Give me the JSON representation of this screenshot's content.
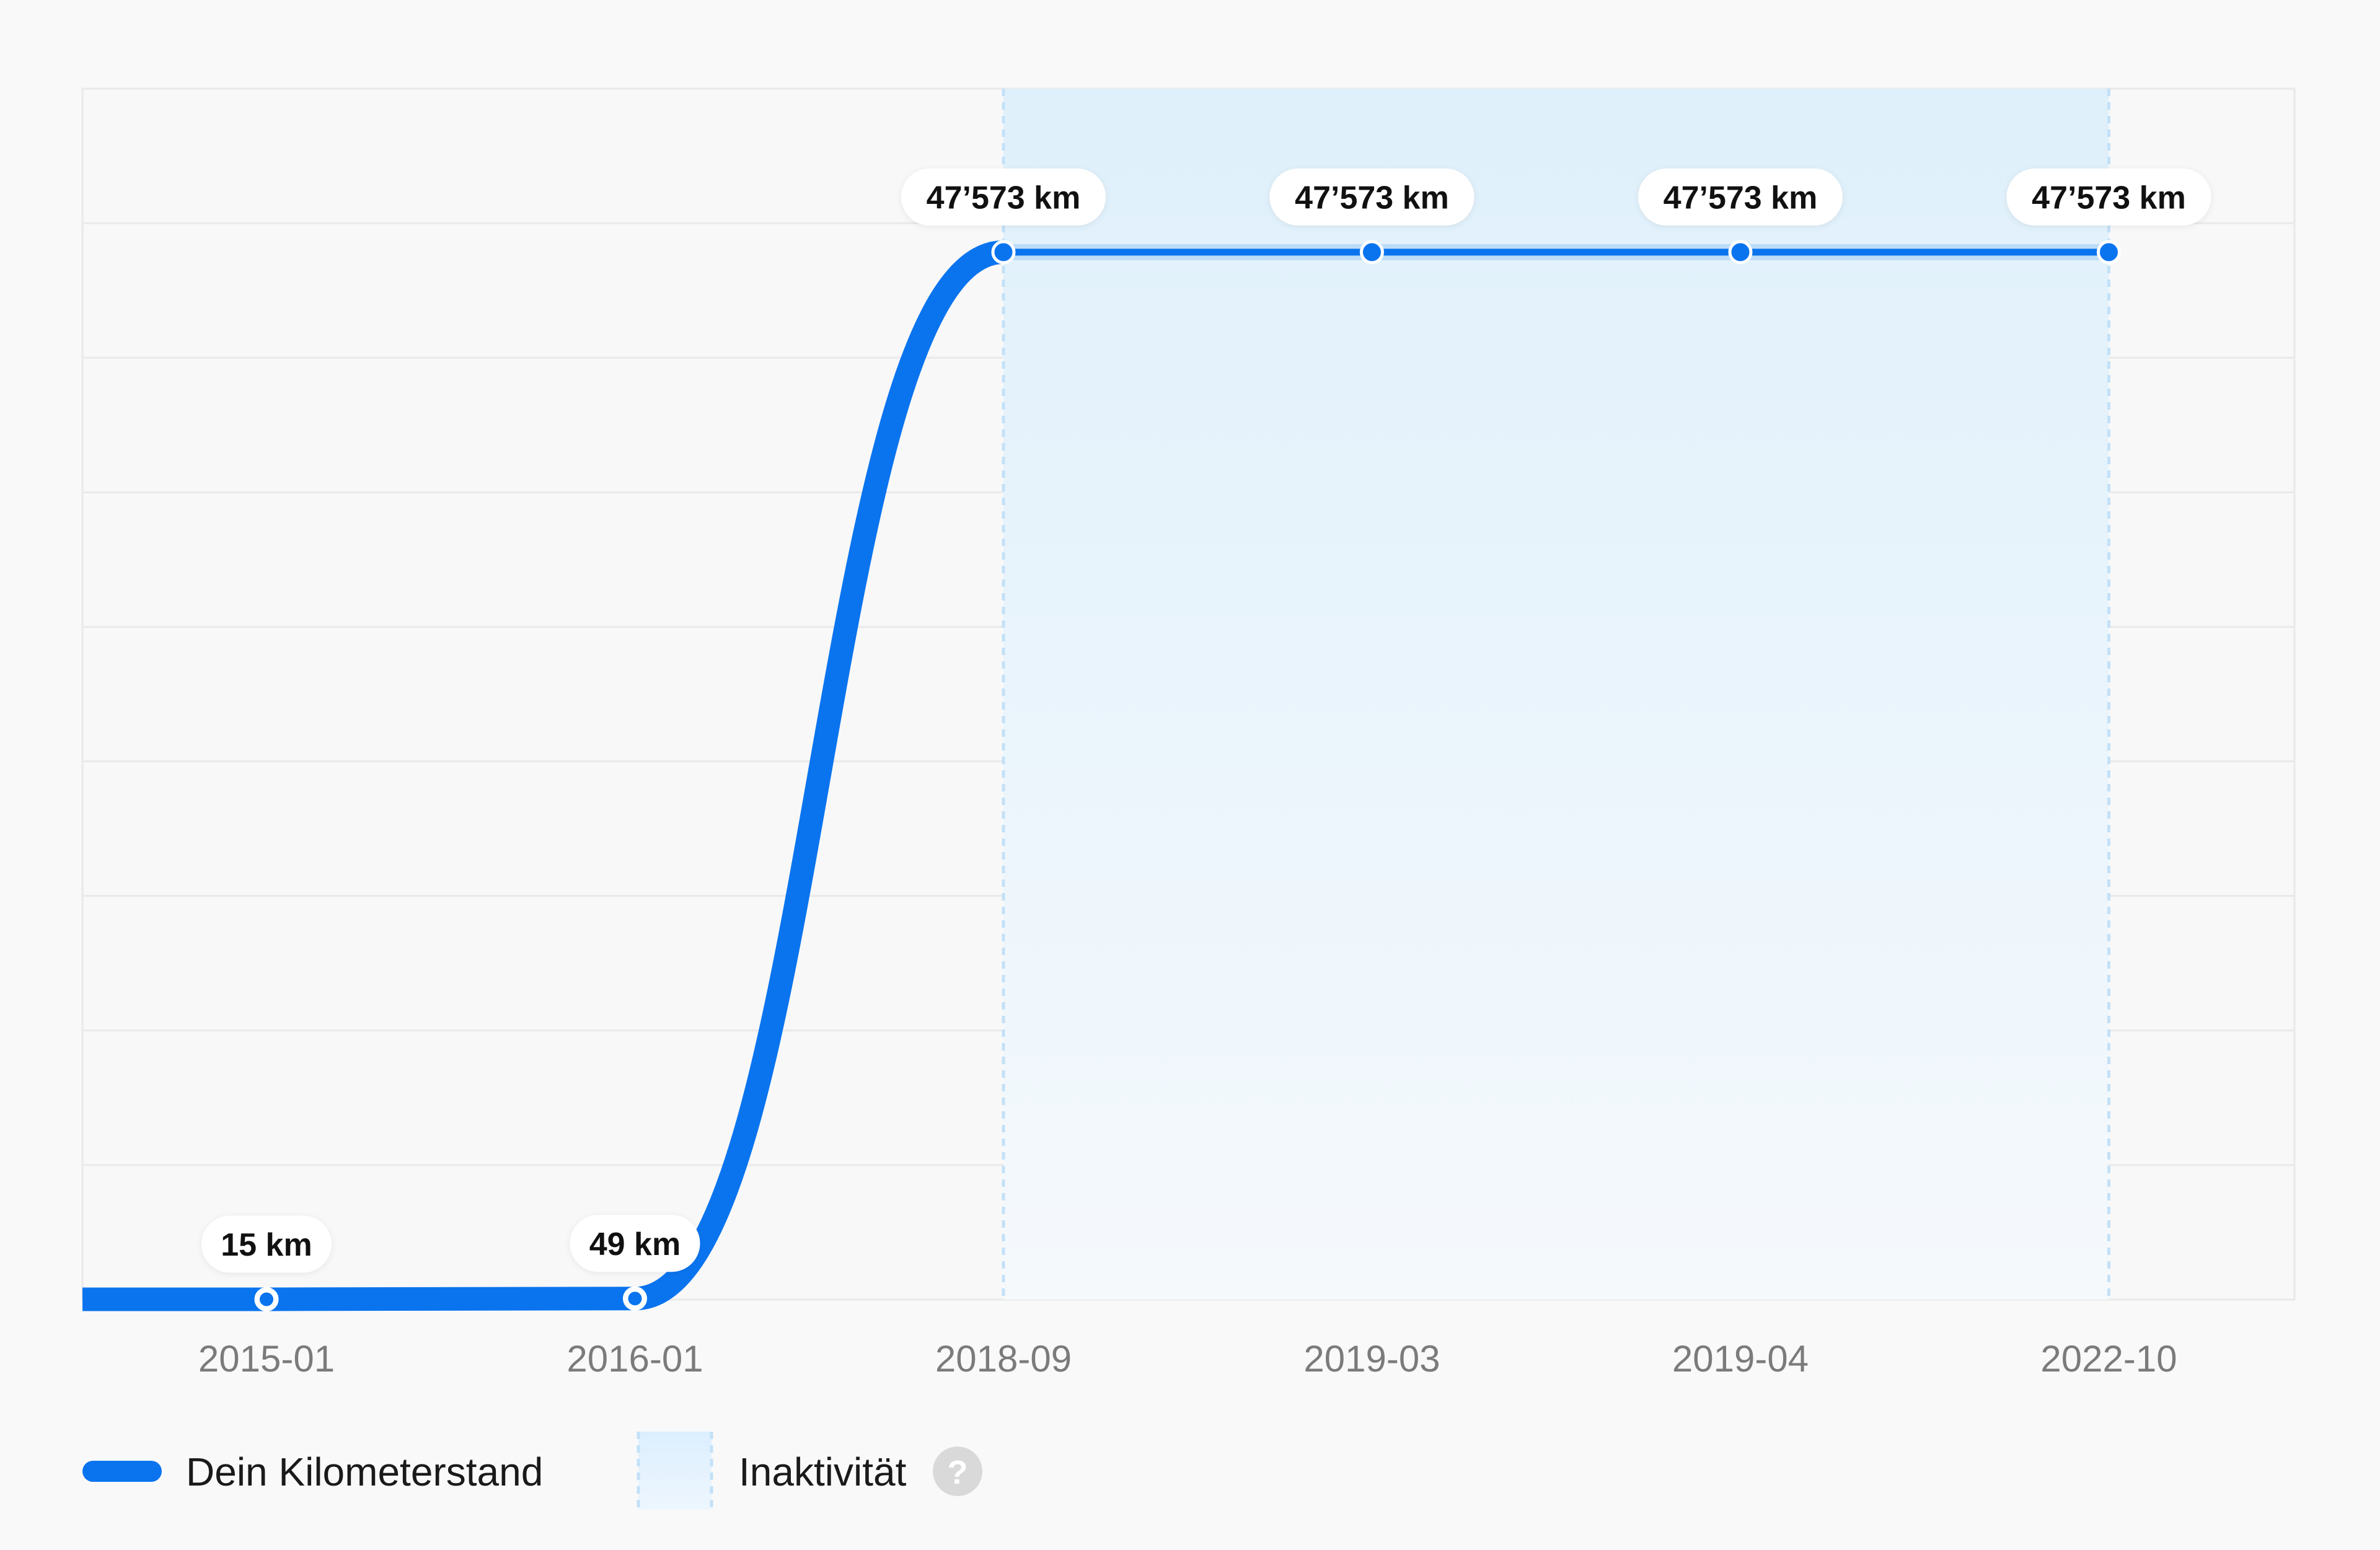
{
  "chart_data": {
    "type": "line",
    "categories": [
      "2015-01",
      "2016-01",
      "2018-09",
      "2019-03",
      "2019-04",
      "2022-10"
    ],
    "series": [
      {
        "name": "Dein Kilometerstand",
        "values": [
          15,
          49,
          47573,
          47573,
          47573,
          47573
        ],
        "labels": [
          "15 km",
          "49 km",
          "47’573 km",
          "47’573 km",
          "47’573 km",
          "47’573 km"
        ],
        "color": "#0a74ef"
      }
    ],
    "inactivity": {
      "name": "Inaktivität",
      "from": "2018-09",
      "to": "2022-10"
    },
    "ylim": [
      0,
      55000
    ],
    "grid": true,
    "legend": {
      "placement": "bottom-left",
      "items": [
        {
          "label": "Dein Kilometerstand",
          "kind": "line"
        },
        {
          "label": "Inaktivität",
          "kind": "area",
          "help_icon": "question-circle-icon",
          "help_glyph": "?"
        }
      ]
    },
    "colors": {
      "line": "#0a74ef",
      "point_fill": "#0a74ef",
      "inactive_band": "#e1effa",
      "inactive_border": "#c3e1f8",
      "grid": "#e9e9e9",
      "tick_text": "#7b7b7b",
      "help_icon": "#d9d9d9"
    }
  }
}
